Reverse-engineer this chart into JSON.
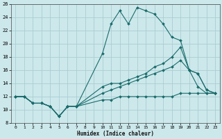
{
  "xlabel": "Humidex (Indice chaleur)",
  "xlim": [
    -0.5,
    23.5
  ],
  "ylim": [
    8,
    26
  ],
  "xticks": [
    0,
    1,
    2,
    3,
    4,
    5,
    6,
    7,
    8,
    9,
    10,
    11,
    12,
    13,
    14,
    15,
    16,
    17,
    18,
    19,
    20,
    21,
    22,
    23
  ],
  "yticks": [
    8,
    10,
    12,
    14,
    16,
    18,
    20,
    22,
    24,
    26
  ],
  "bg_color": "#cce8eb",
  "grid_color": "#aacdd2",
  "line_color": "#1a6b6b",
  "lines": [
    {
      "x": [
        0,
        1,
        2,
        3,
        4,
        5,
        6,
        7,
        10,
        11,
        12,
        13,
        14,
        15,
        16,
        17,
        18,
        19,
        20,
        21,
        22,
        23
      ],
      "y": [
        12,
        12,
        11,
        11,
        10.5,
        9,
        10.5,
        10.5,
        18.5,
        23,
        25,
        23,
        25.5,
        25,
        24.5,
        23,
        21,
        20.5,
        16,
        13.5,
        12.5,
        12.5
      ]
    },
    {
      "x": [
        0,
        1,
        2,
        3,
        4,
        5,
        6,
        7,
        10,
        11,
        12,
        13,
        14,
        15,
        16,
        17,
        18,
        19,
        20,
        21,
        22,
        23
      ],
      "y": [
        12,
        12,
        11,
        11,
        10.5,
        9,
        10.5,
        10.5,
        13.5,
        14,
        14,
        14.5,
        15,
        15.5,
        16.5,
        17,
        18,
        19.5,
        16,
        15.5,
        13,
        12.5
      ]
    },
    {
      "x": [
        0,
        1,
        2,
        3,
        4,
        5,
        6,
        7,
        10,
        11,
        12,
        13,
        14,
        15,
        16,
        17,
        18,
        19,
        20,
        21,
        22,
        23
      ],
      "y": [
        12,
        12,
        11,
        11,
        10.5,
        9,
        10.5,
        10.5,
        12.5,
        13,
        13.5,
        14,
        14.5,
        15,
        15.5,
        16,
        16.5,
        17.5,
        16,
        15.5,
        13,
        12.5
      ]
    },
    {
      "x": [
        0,
        1,
        2,
        3,
        4,
        5,
        6,
        7,
        10,
        11,
        12,
        13,
        14,
        15,
        16,
        17,
        18,
        19,
        20,
        21,
        22,
        23
      ],
      "y": [
        12,
        12,
        11,
        11,
        10.5,
        9,
        10.5,
        10.5,
        11.5,
        11.5,
        12,
        12,
        12,
        12,
        12,
        12,
        12,
        12.5,
        12.5,
        12.5,
        12.5,
        12.5
      ]
    }
  ]
}
